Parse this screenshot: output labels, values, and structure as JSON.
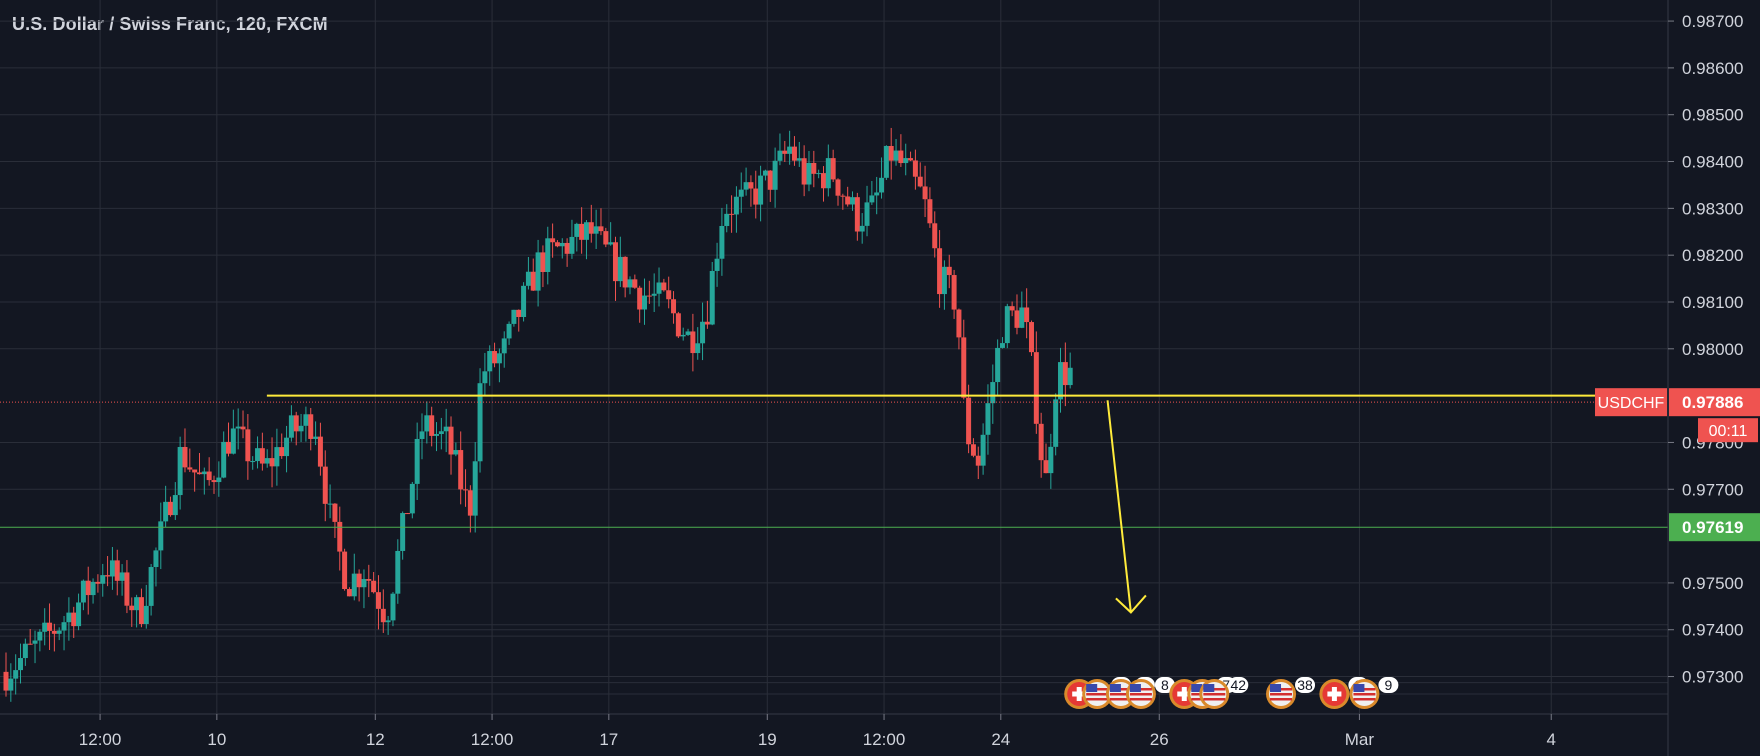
{
  "title": "U.S. Dollar / Swiss Franc, 120, FXCM",
  "colors": {
    "background": "#131722",
    "grid": "#2a2e39",
    "up": "#26a69a",
    "down": "#ef5350",
    "axis_text": "#d1d4dc",
    "horizontal_line": "#ffeb3b",
    "target_line": "#4caf50",
    "price_badge": "#ef5350",
    "target_badge": "#4caf50"
  },
  "chart_data": {
    "type": "candlestick",
    "symbol": "USDCHF",
    "interval": "120",
    "ylim": [
      0.9722,
      0.98745
    ],
    "y_ticks": [
      "0.98700",
      "0.98600",
      "0.98500",
      "0.98400",
      "0.98300",
      "0.98200",
      "0.98100",
      "0.98000",
      "0.97800",
      "0.97700",
      "0.97500",
      "0.97400",
      "0.97300"
    ],
    "y_tick_values": [
      0.987,
      0.986,
      0.985,
      0.984,
      0.983,
      0.982,
      0.981,
      0.98,
      0.978,
      0.977,
      0.975,
      0.974,
      0.973
    ],
    "x_ticks": [
      {
        "label": "12:00",
        "t": 0.06
      },
      {
        "label": "10",
        "t": 0.13
      },
      {
        "label": "12",
        "t": 0.225
      },
      {
        "label": "12:00",
        "t": 0.295
      },
      {
        "label": "17",
        "t": 0.365
      },
      {
        "label": "19",
        "t": 0.46
      },
      {
        "label": "12:00",
        "t": 0.53
      },
      {
        "label": "24",
        "t": 0.6
      },
      {
        "label": "26",
        "t": 0.695
      },
      {
        "label": "Mar",
        "t": 0.815
      },
      {
        "label": "4",
        "t": 0.93
      }
    ],
    "grid": true,
    "current_price": {
      "label": "USDCHF",
      "value": 0.97886,
      "countdown": "00:11"
    },
    "horizontal_line": {
      "value": 0.979,
      "t_start": 0.16,
      "t_end": 0.96
    },
    "target_line": {
      "value": 0.97619,
      "label": "0.97619"
    },
    "forecast_arrow": {
      "from": {
        "t": 0.664,
        "price": 0.9789
      },
      "to": {
        "t": 0.678,
        "price": 0.97437
      }
    },
    "close_path": [
      [
        0,
        0.9731
      ],
      [
        0.02,
        0.9737
      ],
      [
        0.04,
        0.9744
      ],
      [
        0.06,
        0.9754
      ],
      [
        0.08,
        0.9743
      ],
      [
        0.095,
        0.9763
      ],
      [
        0.105,
        0.9778
      ],
      [
        0.12,
        0.977
      ],
      [
        0.135,
        0.9782
      ],
      [
        0.155,
        0.9774
      ],
      [
        0.17,
        0.9782
      ],
      [
        0.185,
        0.9785
      ],
      [
        0.195,
        0.9762
      ],
      [
        0.205,
        0.975
      ],
      [
        0.215,
        0.9753
      ],
      [
        0.228,
        0.9743
      ],
      [
        0.24,
        0.9765
      ],
      [
        0.25,
        0.9784
      ],
      [
        0.265,
        0.978
      ],
      [
        0.278,
        0.9765
      ],
      [
        0.285,
        0.9795
      ],
      [
        0.298,
        0.9799
      ],
      [
        0.31,
        0.981
      ],
      [
        0.32,
        0.9819
      ],
      [
        0.335,
        0.9822
      ],
      [
        0.35,
        0.9825
      ],
      [
        0.365,
        0.9818
      ],
      [
        0.38,
        0.9812
      ],
      [
        0.395,
        0.981
      ],
      [
        0.41,
        0.9802
      ],
      [
        0.42,
        0.9808
      ],
      [
        0.43,
        0.983
      ],
      [
        0.445,
        0.9832
      ],
      [
        0.46,
        0.9837
      ],
      [
        0.47,
        0.9843
      ],
      [
        0.48,
        0.9836
      ],
      [
        0.495,
        0.9838
      ],
      [
        0.51,
        0.9828
      ],
      [
        0.52,
        0.983
      ],
      [
        0.53,
        0.9842
      ],
      [
        0.54,
        0.9838
      ],
      [
        0.55,
        0.9832
      ],
      [
        0.56,
        0.9815
      ],
      [
        0.57,
        0.981
      ],
      [
        0.575,
        0.9783
      ],
      [
        0.583,
        0.9776
      ],
      [
        0.59,
        0.979
      ],
      [
        0.598,
        0.9806
      ],
      [
        0.61,
        0.9808
      ],
      [
        0.617,
        0.979
      ],
      [
        0.623,
        0.977
      ],
      [
        0.63,
        0.9795
      ],
      [
        0.638,
        0.9795
      ]
    ]
  },
  "events": [
    {
      "t": 0.647,
      "icons": [
        "CH",
        "US"
      ],
      "count": "2"
    },
    {
      "t": 0.672,
      "icons": [
        "US"
      ],
      "count": "2"
    },
    {
      "t": 0.684,
      "icons": [
        "US"
      ],
      "count": "8"
    },
    {
      "t": 0.71,
      "icons": [
        "CH",
        "US"
      ],
      "count": "7"
    },
    {
      "t": 0.728,
      "icons": [
        "US"
      ],
      "count": "42"
    },
    {
      "t": 0.768,
      "icons": [
        "US"
      ],
      "count": "38"
    },
    {
      "t": 0.8,
      "icons": [
        "CH"
      ],
      "count": "2"
    },
    {
      "t": 0.818,
      "icons": [
        "US"
      ],
      "count": "9"
    }
  ]
}
